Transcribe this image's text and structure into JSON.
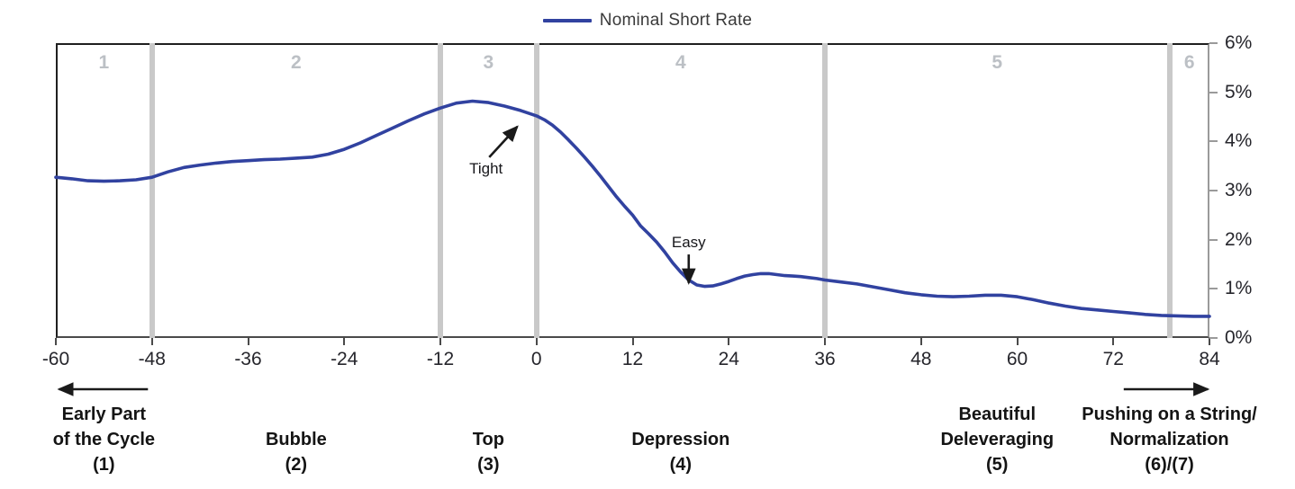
{
  "legend": {
    "label": "Nominal Short Rate"
  },
  "colors": {
    "line": "#3142a0",
    "divider": "#c9c9c9",
    "phase_number": "#bcc0c5",
    "axis_text": "#26262c",
    "annotation": "#17171b",
    "arrow": "#1a1a1a"
  },
  "chart_data": {
    "type": "line",
    "title": "",
    "legend_entries": [
      "Nominal Short Rate"
    ],
    "legend_position": "top-center",
    "grid": false,
    "x_axis": {
      "min": -60,
      "max": 84,
      "ticks": [
        -60,
        -48,
        -36,
        -24,
        -12,
        0,
        12,
        24,
        36,
        48,
        60,
        72,
        84
      ],
      "unit": "months relative to top"
    },
    "y_axis": {
      "min": 0,
      "max": 6,
      "side": "right",
      "tick_values": [
        0,
        1,
        2,
        3,
        4,
        5,
        6
      ],
      "tick_labels": [
        "0%",
        "1%",
        "2%",
        "3%",
        "4%",
        "5%",
        "6%"
      ]
    },
    "series": [
      {
        "name": "Nominal Short Rate",
        "color": "#3142a0",
        "points": [
          [
            -60,
            3.27
          ],
          [
            -58,
            3.24
          ],
          [
            -56,
            3.2
          ],
          [
            -54,
            3.19
          ],
          [
            -52,
            3.2
          ],
          [
            -50,
            3.22
          ],
          [
            -48,
            3.27
          ],
          [
            -46,
            3.38
          ],
          [
            -44,
            3.47
          ],
          [
            -42,
            3.52
          ],
          [
            -40,
            3.56
          ],
          [
            -38,
            3.59
          ],
          [
            -36,
            3.61
          ],
          [
            -34,
            3.63
          ],
          [
            -32,
            3.64
          ],
          [
            -30,
            3.66
          ],
          [
            -28,
            3.68
          ],
          [
            -26,
            3.74
          ],
          [
            -24,
            3.84
          ],
          [
            -22,
            3.97
          ],
          [
            -20,
            4.12
          ],
          [
            -18,
            4.27
          ],
          [
            -16,
            4.42
          ],
          [
            -14,
            4.56
          ],
          [
            -12,
            4.68
          ],
          [
            -10,
            4.78
          ],
          [
            -8,
            4.82
          ],
          [
            -6,
            4.79
          ],
          [
            -4,
            4.72
          ],
          [
            -2,
            4.63
          ],
          [
            0,
            4.52
          ],
          [
            1,
            4.44
          ],
          [
            2,
            4.33
          ],
          [
            3,
            4.19
          ],
          [
            4,
            4.03
          ],
          [
            5,
            3.86
          ],
          [
            6,
            3.68
          ],
          [
            7,
            3.49
          ],
          [
            8,
            3.29
          ],
          [
            9,
            3.08
          ],
          [
            10,
            2.87
          ],
          [
            11,
            2.68
          ],
          [
            12,
            2.5
          ],
          [
            13,
            2.28
          ],
          [
            14,
            2.12
          ],
          [
            15,
            1.95
          ],
          [
            16,
            1.75
          ],
          [
            17,
            1.53
          ],
          [
            18,
            1.34
          ],
          [
            19,
            1.18
          ],
          [
            20,
            1.08
          ],
          [
            21,
            1.05
          ],
          [
            22,
            1.06
          ],
          [
            23,
            1.1
          ],
          [
            24,
            1.15
          ],
          [
            25,
            1.21
          ],
          [
            26,
            1.26
          ],
          [
            27,
            1.29
          ],
          [
            28,
            1.31
          ],
          [
            29,
            1.31
          ],
          [
            30,
            1.29
          ],
          [
            31,
            1.27
          ],
          [
            32,
            1.26
          ],
          [
            33,
            1.25
          ],
          [
            34,
            1.23
          ],
          [
            35,
            1.21
          ],
          [
            36,
            1.18
          ],
          [
            38,
            1.14
          ],
          [
            40,
            1.1
          ],
          [
            42,
            1.04
          ],
          [
            44,
            0.98
          ],
          [
            46,
            0.92
          ],
          [
            48,
            0.88
          ],
          [
            50,
            0.85
          ],
          [
            52,
            0.84
          ],
          [
            54,
            0.85
          ],
          [
            56,
            0.87
          ],
          [
            58,
            0.87
          ],
          [
            60,
            0.84
          ],
          [
            62,
            0.78
          ],
          [
            64,
            0.71
          ],
          [
            66,
            0.65
          ],
          [
            68,
            0.6
          ],
          [
            70,
            0.57
          ],
          [
            72,
            0.54
          ],
          [
            74,
            0.51
          ],
          [
            76,
            0.48
          ],
          [
            78,
            0.46
          ],
          [
            80,
            0.45
          ],
          [
            82,
            0.44
          ],
          [
            84,
            0.44
          ]
        ]
      }
    ],
    "phase_dividers_months": [
      -48,
      -12,
      0,
      36,
      79
    ],
    "phase_numbers": [
      {
        "label": "1",
        "center_month": -54
      },
      {
        "label": "2",
        "center_month": -30
      },
      {
        "label": "3",
        "center_month": -6
      },
      {
        "label": "4",
        "center_month": 18
      },
      {
        "label": "5",
        "center_month": 57.5
      },
      {
        "label": "6",
        "center_month": 81.5
      }
    ],
    "annotations": [
      {
        "id": "tight",
        "text": "Tight",
        "text_month": -6.3,
        "text_pct": 3.43,
        "arrow_from": [
          -5.9,
          3.68
        ],
        "arrow_to": [
          -2.4,
          4.3
        ]
      },
      {
        "id": "easy",
        "text": "Easy",
        "text_month": 19.0,
        "text_pct": 1.93,
        "arrow_from": [
          19.0,
          1.7
        ],
        "arrow_to": [
          19.0,
          1.12
        ]
      }
    ],
    "phase_labels": [
      {
        "lines": [
          "Early Part",
          "of the Cycle",
          "(1)"
        ],
        "center_month": -54
      },
      {
        "lines": [
          "Bubble",
          "(2)"
        ],
        "center_month": -30
      },
      {
        "lines": [
          "Top",
          "(3)"
        ],
        "center_month": -6
      },
      {
        "lines": [
          "Depression",
          "(4)"
        ],
        "center_month": 18
      },
      {
        "lines": [
          "Beautiful",
          "Deleveraging",
          "(5)"
        ],
        "center_month": 57.5
      },
      {
        "lines": [
          "Pushing on a String/",
          "Normalization",
          "(6)/(7)"
        ],
        "center_month": 79
      }
    ],
    "direction_arrows": [
      {
        "id": "left",
        "from_month": -48.5,
        "to_month": -59.6
      },
      {
        "id": "right",
        "from_month": 73.3,
        "to_month": 83.8
      }
    ]
  }
}
